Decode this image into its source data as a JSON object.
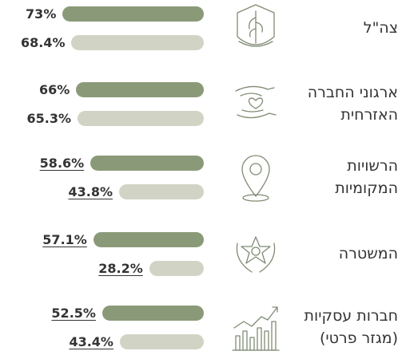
{
  "chart_data": {
    "type": "bar",
    "categories": [
      "צה\"ל",
      "ארגוני החברה האזרחית",
      "הרשויות המקומיות",
      "המשטרה",
      "חברות עסקיות (מגזר פרטי)"
    ],
    "series": [
      {
        "color": "#8a9a78",
        "values": [
          73,
          66,
          58.6,
          57.1,
          52.5
        ],
        "value_labels": [
          "73%",
          "66%",
          "58.6%",
          "57.1%",
          "52.5%"
        ]
      },
      {
        "color": "#d1d4c4",
        "values": [
          68.4,
          65.3,
          43.8,
          28.2,
          43.4
        ],
        "value_labels": [
          "68.4%",
          "65.3%",
          "43.8%",
          "28.2%",
          "43.4%"
        ]
      }
    ],
    "xlim": [
      0,
      100
    ]
  }
}
